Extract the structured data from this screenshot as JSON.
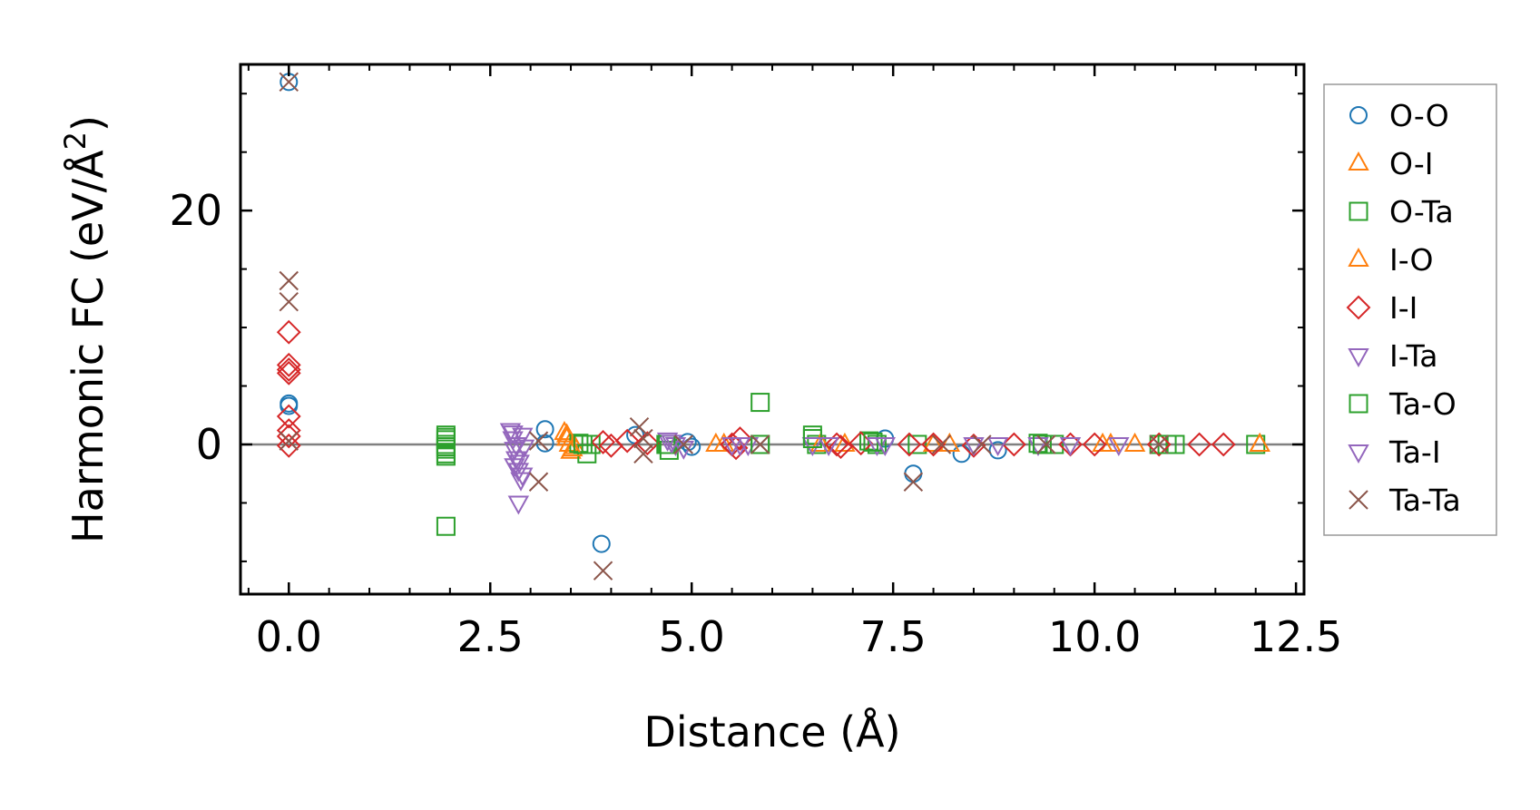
{
  "chart_data": {
    "type": "scatter",
    "title": "",
    "xlabel": "Distance (Å)",
    "ylabel": "Harmonic FC (eV/Å²)",
    "ylabel_parts": {
      "main": "Harmonic FC (eV/Å",
      "sup": "2",
      "close": ")"
    },
    "xlim": [
      -0.6,
      12.6
    ],
    "ylim": [
      -12.8,
      32.5
    ],
    "xticks": [
      0.0,
      2.5,
      5.0,
      7.5,
      10.0,
      12.5
    ],
    "xtick_labels": [
      "0.0",
      "2.5",
      "5.0",
      "7.5",
      "10.0",
      "12.5"
    ],
    "yticks": [
      0,
      20
    ],
    "ytick_labels": [
      "0",
      "20"
    ],
    "zero_line": true,
    "legend": "right-outside",
    "series": [
      {
        "name": "O-O",
        "marker": "circle",
        "color": "#1f77b4",
        "x": [
          0.0,
          0.0,
          0.0,
          3.18,
          3.18,
          3.88,
          4.3,
          4.95,
          5.0,
          7.4,
          7.75,
          8.35,
          8.8
        ],
        "y": [
          31.0,
          3.5,
          3.3,
          1.3,
          0.1,
          -8.5,
          0.8,
          0.2,
          -0.2,
          0.5,
          -2.5,
          -0.8,
          -0.5
        ]
      },
      {
        "name": "O-I",
        "marker": "triangle-up",
        "color": "#ff7f0e",
        "x": [
          3.42,
          3.45,
          3.48,
          3.5,
          3.55,
          5.3,
          6.9,
          8.2,
          10.1,
          10.5,
          12.05
        ],
        "y": [
          1.0,
          0.5,
          0.0,
          -0.6,
          -0.2,
          0.0,
          0.0,
          0.0,
          0.0,
          0.0,
          0.0
        ]
      },
      {
        "name": "O-Ta",
        "marker": "square",
        "color": "#2ca02c",
        "x": [
          1.95,
          1.95,
          1.95,
          1.95,
          1.95,
          1.95,
          3.6,
          3.7,
          3.75,
          4.7,
          4.72,
          5.85,
          5.85,
          6.5,
          6.55,
          7.2,
          7.3,
          7.8,
          9.3,
          9.5,
          10.8,
          11.0,
          12.0
        ],
        "y": [
          0.8,
          0.4,
          0.0,
          -0.4,
          -1.0,
          -7.0,
          0.1,
          -0.8,
          0.0,
          0.0,
          -0.5,
          3.6,
          0.0,
          0.8,
          0.0,
          0.3,
          0.0,
          0.0,
          0.1,
          0.0,
          0.0,
          0.0,
          0.0
        ]
      },
      {
        "name": "I-O",
        "marker": "triangle-up",
        "color": "#ff7f0e",
        "x": [
          3.45,
          3.52,
          5.4,
          6.6,
          8.0,
          10.2,
          12.05
        ],
        "y": [
          0.8,
          -0.4,
          0.0,
          0.0,
          0.0,
          0.0,
          0.0
        ]
      },
      {
        "name": "I-I",
        "marker": "diamond",
        "color": "#d62728",
        "x": [
          0.0,
          0.0,
          0.0,
          0.0,
          0.0,
          0.0,
          0.0,
          0.0,
          3.9,
          4.0,
          4.2,
          4.45,
          5.5,
          5.55,
          5.6,
          6.8,
          6.85,
          7.1,
          7.7,
          8.0,
          8.5,
          9.0,
          9.7,
          10.0,
          10.8,
          11.3,
          11.6
        ],
        "y": [
          9.6,
          6.8,
          6.4,
          6.1,
          2.4,
          1.2,
          0.7,
          -0.1,
          0.2,
          -0.1,
          0.3,
          0.1,
          0.0,
          -0.3,
          0.5,
          0.0,
          -0.2,
          0.1,
          0.0,
          0.0,
          -0.1,
          0.0,
          0.0,
          0.0,
          0.0,
          0.0,
          0.0
        ]
      },
      {
        "name": "I-Ta",
        "marker": "triangle-down",
        "color": "#9467bd",
        "x": [
          2.75,
          2.78,
          2.8,
          2.82,
          2.85,
          2.88,
          2.9,
          2.92,
          2.8,
          2.85,
          4.7,
          4.8,
          4.9,
          5.5,
          5.7,
          6.5,
          7.3,
          8.5,
          9.3,
          10.3
        ],
        "y": [
          1.2,
          0.5,
          -0.4,
          -1.2,
          -2.2,
          -3.0,
          0.8,
          -0.2,
          -1.8,
          -5.0,
          0.4,
          0.0,
          -0.3,
          0.0,
          0.0,
          0.0,
          0.0,
          0.0,
          0.0,
          0.0
        ]
      },
      {
        "name": "Ta-O",
        "marker": "square",
        "color": "#2ca02c",
        "x": [
          1.95,
          1.95,
          1.95,
          3.65,
          4.68,
          5.85,
          6.5,
          7.25,
          9.35,
          10.9
        ],
        "y": [
          0.6,
          -0.2,
          -0.8,
          0.0,
          0.0,
          0.0,
          0.5,
          0.2,
          0.0,
          0.0
        ]
      },
      {
        "name": "Ta-I",
        "marker": "triangle-down",
        "color": "#9467bd",
        "x": [
          2.78,
          2.82,
          2.86,
          2.9,
          4.75,
          5.6,
          6.7,
          7.4,
          8.8,
          9.7
        ],
        "y": [
          1.0,
          0.0,
          -1.5,
          -2.6,
          0.2,
          0.0,
          0.0,
          0.0,
          0.0,
          0.0
        ]
      },
      {
        "name": "Ta-Ta",
        "marker": "x",
        "color": "#8c564b",
        "x": [
          0.0,
          0.0,
          0.0,
          0.0,
          3.1,
          3.1,
          3.9,
          4.35,
          4.4,
          4.4,
          4.9,
          5.85,
          7.75,
          8.1,
          8.6,
          9.4,
          10.8
        ],
        "y": [
          31.0,
          14.0,
          12.2,
          0.3,
          -3.2,
          0.3,
          -10.8,
          1.5,
          0.5,
          -0.8,
          0.0,
          0.0,
          -3.2,
          0.0,
          0.0,
          0.0,
          0.0
        ]
      }
    ]
  }
}
